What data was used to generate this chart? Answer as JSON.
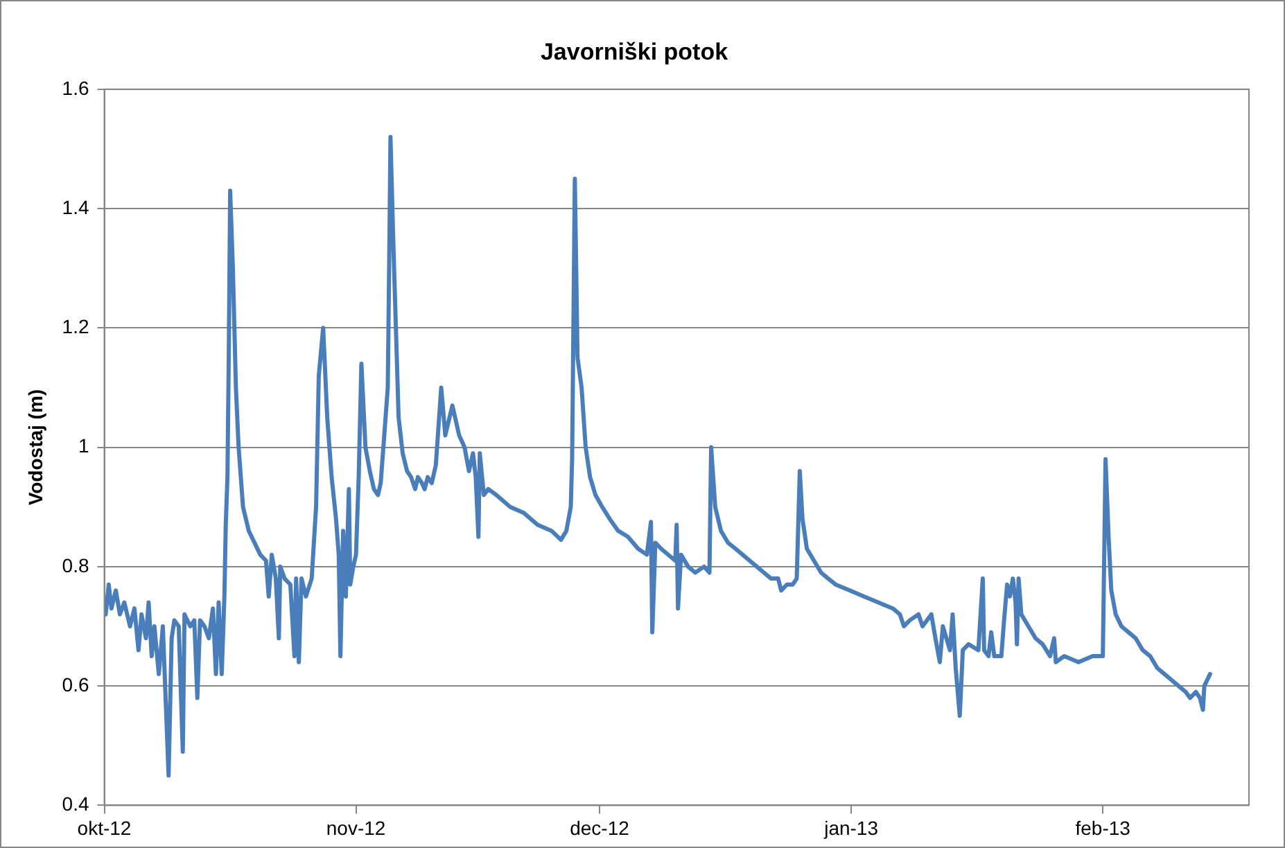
{
  "chart_data": {
    "type": "line",
    "title": "Javorniški potok",
    "ylabel": "Vodostaj (m)",
    "xlim": [
      "2012-10-01",
      "2013-02-19"
    ],
    "xticks": [
      {
        "value": "2012-10-01",
        "label": "okt-12"
      },
      {
        "value": "2012-11-01",
        "label": "nov-12"
      },
      {
        "value": "2012-12-01",
        "label": "dec-12"
      },
      {
        "value": "2013-01-01",
        "label": "jan-13"
      },
      {
        "value": "2013-02-01",
        "label": "feb-13"
      }
    ],
    "ylim": [
      0.4,
      1.6
    ],
    "yticks": [
      0.4,
      0.6,
      0.8,
      1,
      1.2,
      1.4,
      1.6
    ],
    "grid": "y",
    "legend": false,
    "marker": "none",
    "line_style": "solid",
    "series": [
      {
        "color": "#4a7ebb",
        "x": [
          "2012-10-01T04:00",
          "2012-10-01T13:00",
          "2012-10-01T21:00",
          "2012-10-02T10:00",
          "2012-10-02T22:00",
          "2012-10-03T11:00",
          "2012-10-04T04:00",
          "2012-10-04T17:00",
          "2012-10-05T05:00",
          "2012-10-05T14:00",
          "2012-10-06T03:00",
          "2012-10-06T11:00",
          "2012-10-06T20:00",
          "2012-10-07T04:00",
          "2012-10-07T17:00",
          "2012-10-08T05:00",
          "2012-10-08T22:00",
          "2012-10-09T07:00",
          "2012-10-09T15:00",
          "2012-10-10T04:00",
          "2012-10-10T16:00",
          "2012-10-10T21:00",
          "2012-10-11T14:00",
          "2012-10-12T02:00",
          "2012-10-12T11:00",
          "2012-10-12T19:00",
          "2012-10-13T08:00",
          "2012-10-13T21:00",
          "2012-10-14T09:00",
          "2012-10-14T18:00",
          "2012-10-15T02:00",
          "2012-10-15T11:00",
          "2012-10-15T19:00",
          "2012-10-15T23:00",
          "2012-10-16T04:00",
          "2012-10-16T08:00",
          "2012-10-16T12:00",
          "2012-10-16T20:00",
          "2012-10-17T05:00",
          "2012-10-17T13:00",
          "2012-10-18T02:00",
          "2012-10-18T19:00",
          "2012-10-19T12:00",
          "2012-10-20T05:00",
          "2012-10-20T22:00",
          "2012-10-21T06:00",
          "2012-10-21T15:00",
          "2012-10-22T03:00",
          "2012-10-22T12:00",
          "2012-10-22T16:00",
          "2012-10-23T05:00",
          "2012-10-23T22:00",
          "2012-10-24T10:00",
          "2012-10-24T15:00",
          "2012-10-24T23:00",
          "2012-10-25T07:00",
          "2012-10-25T20:00",
          "2012-10-26T13:00",
          "2012-10-27T02:00",
          "2012-10-27T10:00",
          "2012-10-27T23:00",
          "2012-10-28T11:00",
          "2012-10-29T00:00",
          "2012-10-29T13:00",
          "2012-10-29T21:00",
          "2012-10-30T02:00",
          "2012-10-30T10:00",
          "2012-10-30T18:00",
          "2012-10-31T03:00",
          "2012-10-31T07:00",
          "2012-10-31T16:00",
          "2012-11-01T00:00",
          "2012-11-01T08:00",
          "2012-11-01T16:00",
          "2012-11-02T04:00",
          "2012-11-02T17:00",
          "2012-11-03T05:00",
          "2012-11-03T17:00",
          "2012-11-04T01:00",
          "2012-11-04T09:00",
          "2012-11-04T22:00",
          "2012-11-05T02:00",
          "2012-11-05T06:00",
          "2012-11-05T14:00",
          "2012-11-05T22:00",
          "2012-11-06T06:00",
          "2012-11-06T18:00",
          "2012-11-07T07:00",
          "2012-11-07T19:00",
          "2012-11-08T07:00",
          "2012-11-08T15:00",
          "2012-11-09T03:00",
          "2012-11-09T11:00",
          "2012-11-09T20:00",
          "2012-11-10T08:00",
          "2012-11-10T20:00",
          "2012-11-11T12:00",
          "2012-11-12T00:00",
          "2012-11-12T21:00",
          "2012-11-13T17:00",
          "2012-11-14T09:00",
          "2012-11-14T22:00",
          "2012-11-15T10:00",
          "2012-11-15T18:00",
          "2012-11-16T02:00",
          "2012-11-16T06:00",
          "2012-11-16T18:00",
          "2012-11-17T07:00",
          "2012-11-18T07:00",
          "2012-11-20T00:00",
          "2012-11-21T16:00",
          "2012-11-23T09:00",
          "2012-11-25T02:00",
          "2012-11-26T06:00",
          "2012-11-26T22:00",
          "2012-11-27T11:00",
          "2012-11-27T15:00",
          "2012-11-27T23:00",
          "2012-11-28T07:00",
          "2012-11-28T19:00",
          "2012-11-29T07:00",
          "2012-11-29T20:00",
          "2012-11-30T12:00",
          "2012-12-01T08:00",
          "2012-12-02T06:00",
          "2012-12-03T07:00",
          "2012-12-04T12:00",
          "2012-12-05T18:00",
          "2012-12-06T20:00",
          "2012-12-07T08:00",
          "2012-12-07T12:00",
          "2012-12-07T21:00",
          "2012-12-08T14:00",
          "2012-12-10T08:00",
          "2012-12-10T12:00",
          "2012-12-10T16:00",
          "2012-12-11T01:00",
          "2012-12-11T22:00",
          "2012-12-12T19:00",
          "2012-12-13T21:00",
          "2012-12-14T13:00",
          "2012-12-14T18:00",
          "2012-12-15T06:00",
          "2012-12-15T23:00",
          "2012-12-16T20:00",
          "2012-12-17T18:00",
          "2012-12-18T15:00",
          "2012-12-19T12:00",
          "2012-12-20T09:00",
          "2012-12-21T06:00",
          "2012-12-22T03:00",
          "2012-12-23T00:00",
          "2012-12-23T09:00",
          "2012-12-24T02:00",
          "2012-12-24T19:00",
          "2012-12-25T07:00",
          "2012-12-25T16:00",
          "2012-12-26T00:00",
          "2012-12-26T13:00",
          "2012-12-27T10:00",
          "2012-12-28T07:00",
          "2012-12-29T04:00",
          "2012-12-30T02:00",
          "2012-12-31T20:00",
          "2013-01-02T14:00",
          "2013-01-04T08:00",
          "2013-01-06T03:00",
          "2013-01-07T00:00",
          "2013-01-07T12:00",
          "2013-01-08T05:00",
          "2013-01-09T07:00",
          "2013-01-09T19:00",
          "2013-01-10T21:00",
          "2013-01-11T09:00",
          "2013-01-11T22:00",
          "2013-01-12T07:00",
          "2013-01-13T04:00",
          "2013-01-13T12:00",
          "2013-01-13T21:00",
          "2013-01-14T09:00",
          "2013-01-14T18:00",
          "2013-01-15T11:00",
          "2013-01-16T16:00",
          "2013-01-17T05:00",
          "2013-01-17T09:00",
          "2013-01-17T22:00",
          "2013-01-18T06:00",
          "2013-01-18T15:00",
          "2013-01-19T12:00",
          "2013-01-19T20:00",
          "2013-01-20T05:00",
          "2013-01-20T13:00",
          "2013-01-20T22:00",
          "2013-01-21T06:00",
          "2013-01-21T10:00",
          "2013-01-21T15:00",
          "2013-01-21T23:00",
          "2013-01-22T20:00",
          "2013-01-23T17:00",
          "2013-01-24T14:00",
          "2013-01-25T12:00",
          "2013-01-26T00:00",
          "2013-01-26T05:00",
          "2013-01-27T06:00",
          "2013-01-29T00:00",
          "2013-01-30T18:00",
          "2013-02-01T00:00",
          "2013-02-01T08:00",
          "2013-02-01T17:00",
          "2013-02-02T01:00",
          "2013-02-02T14:00",
          "2013-02-03T07:00",
          "2013-02-04T04:00",
          "2013-02-05T01:00",
          "2013-02-05T22:00",
          "2013-02-06T20:00",
          "2013-02-07T17:00",
          "2013-02-08T14:00",
          "2013-02-09T11:00",
          "2013-02-10T08:00",
          "2013-02-11T05:00",
          "2013-02-11T18:00",
          "2013-02-12T11:00",
          "2013-02-12T23:00",
          "2013-02-13T08:00",
          "2013-02-13T12:00",
          "2013-02-14T05:00"
        ],
        "values": [
          0.72,
          0.77,
          0.73,
          0.76,
          0.72,
          0.74,
          0.7,
          0.73,
          0.66,
          0.72,
          0.68,
          0.74,
          0.65,
          0.7,
          0.62,
          0.7,
          0.45,
          0.68,
          0.71,
          0.7,
          0.49,
          0.72,
          0.7,
          0.71,
          0.58,
          0.71,
          0.7,
          0.68,
          0.73,
          0.62,
          0.74,
          0.62,
          0.75,
          0.87,
          0.95,
          1.16,
          1.43,
          1.3,
          1.1,
          1.0,
          0.9,
          0.86,
          0.84,
          0.82,
          0.81,
          0.75,
          0.82,
          0.78,
          0.68,
          0.8,
          0.78,
          0.77,
          0.65,
          0.78,
          0.64,
          0.78,
          0.75,
          0.78,
          0.9,
          1.12,
          1.2,
          1.05,
          0.95,
          0.88,
          0.82,
          0.65,
          0.86,
          0.75,
          0.93,
          0.77,
          0.8,
          0.82,
          0.95,
          1.14,
          1.0,
          0.96,
          0.93,
          0.92,
          0.94,
          1.0,
          1.1,
          1.3,
          1.52,
          1.35,
          1.2,
          1.05,
          0.99,
          0.96,
          0.95,
          0.93,
          0.95,
          0.94,
          0.93,
          0.95,
          0.94,
          0.97,
          1.1,
          1.02,
          1.07,
          1.02,
          1.0,
          0.96,
          0.99,
          0.95,
          0.85,
          0.99,
          0.92,
          0.93,
          0.92,
          0.9,
          0.89,
          0.87,
          0.86,
          0.845,
          0.86,
          0.9,
          0.98,
          1.45,
          1.15,
          1.1,
          1.0,
          0.95,
          0.92,
          0.9,
          0.88,
          0.86,
          0.85,
          0.83,
          0.82,
          0.875,
          0.69,
          0.84,
          0.83,
          0.81,
          0.87,
          0.73,
          0.82,
          0.8,
          0.79,
          0.8,
          0.79,
          1.0,
          0.9,
          0.86,
          0.84,
          0.83,
          0.82,
          0.81,
          0.8,
          0.79,
          0.78,
          0.78,
          0.76,
          0.77,
          0.77,
          0.78,
          0.96,
          0.88,
          0.83,
          0.81,
          0.79,
          0.78,
          0.77,
          0.76,
          0.75,
          0.74,
          0.73,
          0.72,
          0.7,
          0.71,
          0.72,
          0.7,
          0.72,
          0.68,
          0.64,
          0.7,
          0.66,
          0.72,
          0.63,
          0.55,
          0.66,
          0.67,
          0.66,
          0.78,
          0.66,
          0.65,
          0.69,
          0.65,
          0.65,
          0.71,
          0.77,
          0.75,
          0.78,
          0.74,
          0.67,
          0.78,
          0.72,
          0.7,
          0.68,
          0.67,
          0.65,
          0.68,
          0.64,
          0.65,
          0.64,
          0.65,
          0.65,
          0.98,
          0.85,
          0.76,
          0.72,
          0.7,
          0.69,
          0.68,
          0.66,
          0.65,
          0.63,
          0.62,
          0.61,
          0.6,
          0.59,
          0.58,
          0.59,
          0.58,
          0.56,
          0.6,
          0.62
        ]
      }
    ]
  }
}
